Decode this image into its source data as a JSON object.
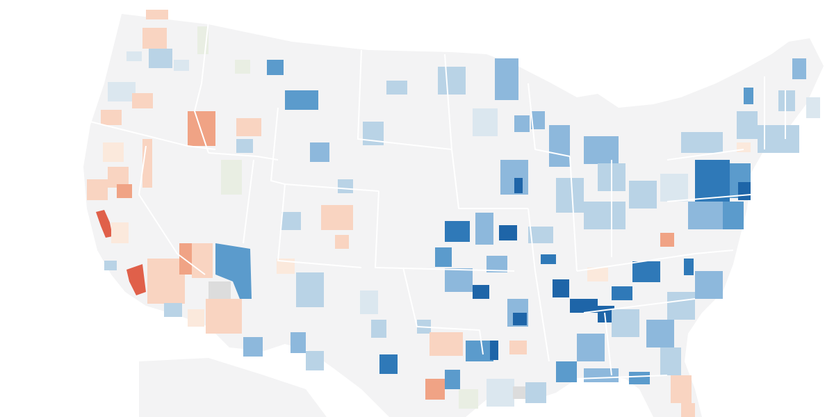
{
  "map": {
    "type": "choropleth",
    "region": "contiguous-united-states",
    "unit": "metro-area",
    "labels_visible": false,
    "legend_visible": false,
    "colors": {
      "land": "#f3f3f4",
      "state_border": "#ffffff",
      "neutral_gray": "#dcdcdc",
      "strong_red": "#e0604a",
      "mid_red": "#f0a385",
      "light_red": "#f9d4c1",
      "pale_red": "#fbe9dc",
      "pale_green": "#e9eee3",
      "pale_blue": "#dbe7ef",
      "light_blue": "#b9d3e6",
      "mid_blue": "#8db8dc",
      "strong_blue": "#5b9bcc",
      "darkest_blue": "#1e65a8"
    }
  }
}
